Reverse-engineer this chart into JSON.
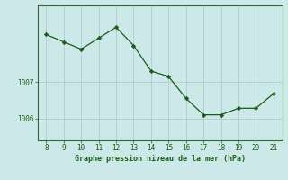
{
  "x": [
    8,
    9,
    10,
    11,
    12,
    13,
    14,
    15,
    16,
    17,
    18,
    19,
    20,
    21
  ],
  "y": [
    1008.3,
    1008.1,
    1007.9,
    1008.2,
    1008.5,
    1008.0,
    1007.3,
    1007.15,
    1006.55,
    1006.1,
    1006.1,
    1006.28,
    1006.28,
    1006.68
  ],
  "line_color": "#1a5c1a",
  "marker_color": "#1a5c1a",
  "bg_color": "#cce8e8",
  "plot_bg_color": "#cce8e8",
  "grid_color": "#b0cccc",
  "xlabel": "Graphe pression niveau de la mer (hPa)",
  "xlabel_color": "#1a5c1a",
  "tick_color": "#1a5c1a",
  "ytick_labels": [
    "1006",
    "1007"
  ],
  "ytick_values": [
    1006,
    1007
  ],
  "xtick_values": [
    8,
    9,
    10,
    11,
    12,
    13,
    14,
    15,
    16,
    17,
    18,
    19,
    20,
    21
  ],
  "ylim": [
    1005.4,
    1009.1
  ],
  "xlim": [
    7.5,
    21.5
  ]
}
